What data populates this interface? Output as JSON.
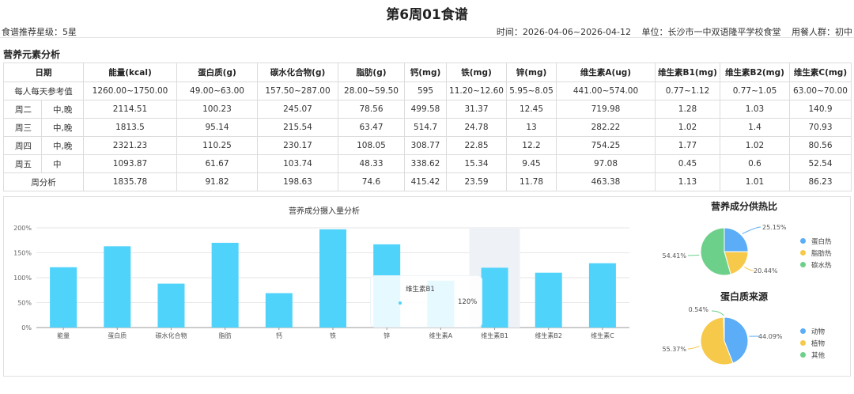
{
  "header": {
    "title": "第6周01食谱",
    "rating": "食谱推荐星级：5星",
    "time": "时间：2026-04-06~2026-04-12",
    "unit": "单位：长沙市一中双语隆平学校食堂",
    "group": "用餐人群：初中"
  },
  "section_title": "营养元素分析",
  "table": {
    "headers": [
      "日期",
      "能量(kcal)",
      "蛋白质(g)",
      "碳水化合物(g)",
      "脂肪(g)",
      "钙(mg)",
      "铁(mg)",
      "锌(mg)",
      "维生素A(ug)",
      "维生素B1(mg)",
      "维生素B2(mg)",
      "维生素C(mg)"
    ],
    "reference": {
      "label": "每人每天参考值",
      "values": [
        "1260.00~1750.00",
        "49.00~63.00",
        "157.50~287.00",
        "28.00~59.50",
        "595",
        "11.20~12.60",
        "5.95~8.05",
        "441.00~574.00",
        "0.77~1.12",
        "0.77~1.05",
        "63.00~70.00"
      ]
    },
    "rows": [
      {
        "day": "周二",
        "meal": "中,晚",
        "values": [
          "2114.51",
          "100.23",
          "245.07",
          "78.56",
          "499.58",
          "31.37",
          "12.45",
          "719.98",
          "1.28",
          "1.03",
          "140.9"
        ]
      },
      {
        "day": "周三",
        "meal": "中,晚",
        "values": [
          "1813.5",
          "95.14",
          "215.54",
          "63.47",
          "514.7",
          "24.78",
          "13",
          "282.22",
          "1.02",
          "1.4",
          "70.93"
        ]
      },
      {
        "day": "周四",
        "meal": "中,晚",
        "values": [
          "2321.23",
          "110.25",
          "230.17",
          "108.05",
          "308.77",
          "22.85",
          "12.2",
          "754.25",
          "1.77",
          "1.02",
          "80.56"
        ]
      },
      {
        "day": "周五",
        "meal": "中",
        "values": [
          "1093.87",
          "61.67",
          "103.74",
          "48.33",
          "338.62",
          "15.34",
          "9.45",
          "97.08",
          "0.45",
          "0.6",
          "52.54"
        ]
      }
    ],
    "summary": {
      "label": "周分析",
      "values": [
        "1835.78",
        "91.82",
        "198.63",
        "74.6",
        "415.42",
        "23.59",
        "11.78",
        "463.38",
        "1.13",
        "1.01",
        "86.23"
      ]
    }
  },
  "bar_chart": {
    "title": "营养成分摄入量分析",
    "highlight_index": 8,
    "tooltip": {
      "name": "维生素B1",
      "value": "120%"
    }
  },
  "pie1": {
    "title": "营养成分供热比"
  },
  "pie2": {
    "title": "蛋白质来源"
  },
  "chart_data": [
    {
      "type": "bar",
      "categories": [
        "能量",
        "蛋白质",
        "碳水化合物",
        "脂肪",
        "钙",
        "铁",
        "锌",
        "维生素A",
        "维生素B1",
        "维生素B2",
        "维生素C"
      ],
      "values": [
        121,
        163,
        88,
        170,
        69,
        197,
        167,
        94,
        120,
        110,
        129
      ],
      "yticks": [
        "0%",
        "50%",
        "100%",
        "150%",
        "200%"
      ],
      "ylim": [
        0,
        200
      ],
      "color": "#4fd3fb"
    },
    {
      "type": "pie",
      "labels": [
        "蛋白热",
        "脂肪热",
        "碳水热"
      ],
      "values": [
        25.15,
        20.44,
        54.41
      ],
      "value_labels": [
        "25.15%",
        "20.44%",
        "54.41%"
      ],
      "colors": [
        "#5aadf6",
        "#f6c94a",
        "#6cd08a"
      ]
    },
    {
      "type": "pie",
      "labels": [
        "动物",
        "植物",
        "其他"
      ],
      "values": [
        44.09,
        55.37,
        0.54
      ],
      "value_labels": [
        "44.09%",
        "55.37%",
        "0.54%"
      ],
      "colors": [
        "#5aadf6",
        "#f6c94a",
        "#6cd08a"
      ]
    }
  ]
}
